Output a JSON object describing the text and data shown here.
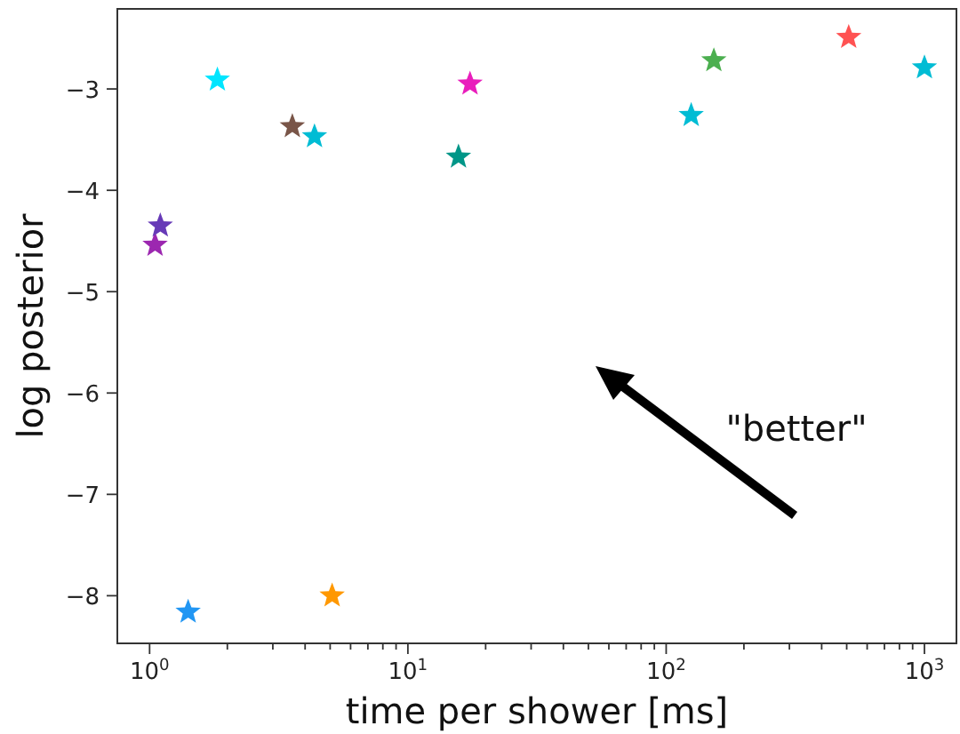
{
  "chart_data": {
    "type": "scatter",
    "xlabel": "time per shower [ms]",
    "ylabel": "log posterior",
    "log": "x",
    "marker": "star",
    "x": [
      1.05,
      1.1,
      1.83,
      3.57,
      4.35,
      15.7,
      17.4,
      125,
      153,
      509,
      1000,
      1.41,
      5.09
    ],
    "values": [
      -4.54,
      -4.35,
      -2.91,
      -3.37,
      -3.47,
      -3.67,
      -2.95,
      -3.26,
      -2.72,
      -2.49,
      -2.79,
      -8.16,
      -8.0
    ],
    "colors": [
      "#9c27b0",
      "#673ab7",
      "#00e5ff",
      "#795548",
      "#00bcd4",
      "#009688",
      "#e91ebc",
      "#00bcd4",
      "#4caf50",
      "#ff5252",
      "#00bcd4",
      "#2196f3",
      "#ff9800"
    ],
    "xlim": [
      0.75,
      1330
    ],
    "xticks": [
      {
        "value": 1,
        "label": "10$^{0}$"
      },
      {
        "value": 2,
        "label": null
      },
      {
        "value": 3,
        "label": null
      },
      {
        "value": 4,
        "label": null
      },
      {
        "value": 5,
        "label": null
      },
      {
        "value": 6,
        "label": null
      },
      {
        "value": 7,
        "label": null
      },
      {
        "value": 8,
        "label": null
      },
      {
        "value": 9,
        "label": null
      },
      {
        "value": 10,
        "label": "10$^{1}$"
      },
      {
        "value": 20,
        "label": null
      },
      {
        "value": 30,
        "label": null
      },
      {
        "value": 40,
        "label": null
      },
      {
        "value": 50,
        "label": null
      },
      {
        "value": 60,
        "label": null
      },
      {
        "value": 70,
        "label": null
      },
      {
        "value": 80,
        "label": null
      },
      {
        "value": 90,
        "label": null
      },
      {
        "value": 100,
        "label": "10$^{2}$"
      },
      {
        "value": 200,
        "label": null
      },
      {
        "value": 300,
        "label": null
      },
      {
        "value": 400,
        "label": null
      },
      {
        "value": 500,
        "label": null
      },
      {
        "value": 600,
        "label": null
      },
      {
        "value": 700,
        "label": null
      },
      {
        "value": 800,
        "label": null
      },
      {
        "value": 900,
        "label": null
      },
      {
        "value": 1000,
        "label": "10$^{3}$"
      }
    ],
    "ylim": [
      -8.47,
      -2.21
    ],
    "yticks": [
      {
        "value": -8,
        "label": "−8"
      },
      {
        "value": -7,
        "label": "−7"
      },
      {
        "value": -6,
        "label": "−6"
      },
      {
        "value": -5,
        "label": "−5"
      },
      {
        "value": -4,
        "label": "−4"
      },
      {
        "value": -3,
        "label": "−3"
      }
    ],
    "annotations": [
      "\"better\""
    ]
  }
}
